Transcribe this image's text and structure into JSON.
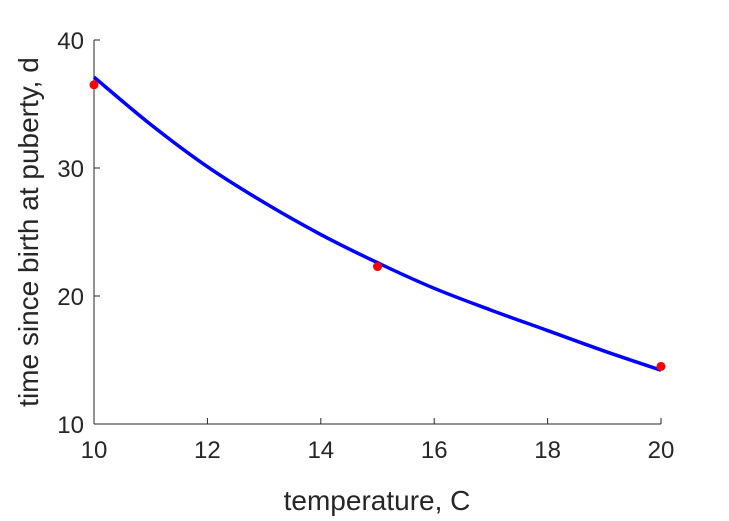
{
  "chart_data": {
    "type": "line",
    "title": "",
    "xlabel": "temperature, C",
    "ylabel": "time since birth at puberty, d",
    "xlim": [
      10,
      20
    ],
    "ylim": [
      10,
      40
    ],
    "x_ticks": [
      10,
      12,
      14,
      16,
      18,
      20
    ],
    "y_ticks": [
      10,
      20,
      30,
      40
    ],
    "grid": false,
    "legend": "none",
    "series": [
      {
        "type": "line",
        "color": "#0000ff",
        "x": [
          10,
          11,
          12,
          13,
          14,
          15,
          16,
          17,
          18,
          19,
          20
        ],
        "y": [
          37.1,
          33.4,
          30.1,
          27.3,
          24.8,
          22.6,
          20.6,
          18.9,
          17.3,
          15.7,
          14.2
        ]
      },
      {
        "type": "scatter",
        "color": "#ff0000",
        "x": [
          10,
          15,
          20
        ],
        "y": [
          36.5,
          22.3,
          14.5
        ]
      }
    ]
  }
}
